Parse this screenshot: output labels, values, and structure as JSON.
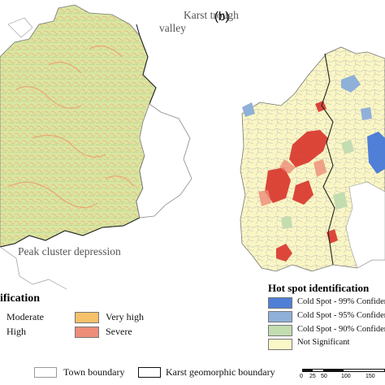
{
  "panel_a": {
    "annotations": {
      "karst_trough_line1": "Karst trough",
      "karst_trough_line2": "valley",
      "peak_cluster": "Peak cluster depression"
    },
    "legend": {
      "title_fragment": "ification",
      "items": [
        {
          "label": "Moderate",
          "color": "#d8e8a0"
        },
        {
          "label": "High",
          "color": "#f2c48a"
        },
        {
          "label": "Very high",
          "color": "#f5c16a"
        },
        {
          "label": "Severe",
          "color": "#ee8d78"
        }
      ]
    }
  },
  "panel_b": {
    "label": "(b)",
    "legend": {
      "title": "Hot spot identification",
      "items": [
        {
          "label": "Cold Spot - 99% Confiden",
          "color": "#4f7fd6"
        },
        {
          "label": "Cold Spot - 95% Confiden",
          "color": "#8fb0d8"
        },
        {
          "label": "Cold Spot - 90% Confiden",
          "color": "#c3dcb0"
        },
        {
          "label": "Not Significant",
          "color": "#fbf7c8"
        }
      ]
    }
  },
  "bottom_legend": {
    "town_boundary": "Town boundary",
    "karst_boundary": "Karst geomorphic boundary"
  },
  "scale_bar": {
    "ticks": [
      "0",
      "25",
      "50",
      "100",
      "150"
    ]
  },
  "colors": {
    "map_a_fill": "#d8e6a0",
    "map_b_fill": "#faf6c4",
    "hotspot_red": "#d9342b",
    "coldspot_blue": "#4f7fd6"
  }
}
